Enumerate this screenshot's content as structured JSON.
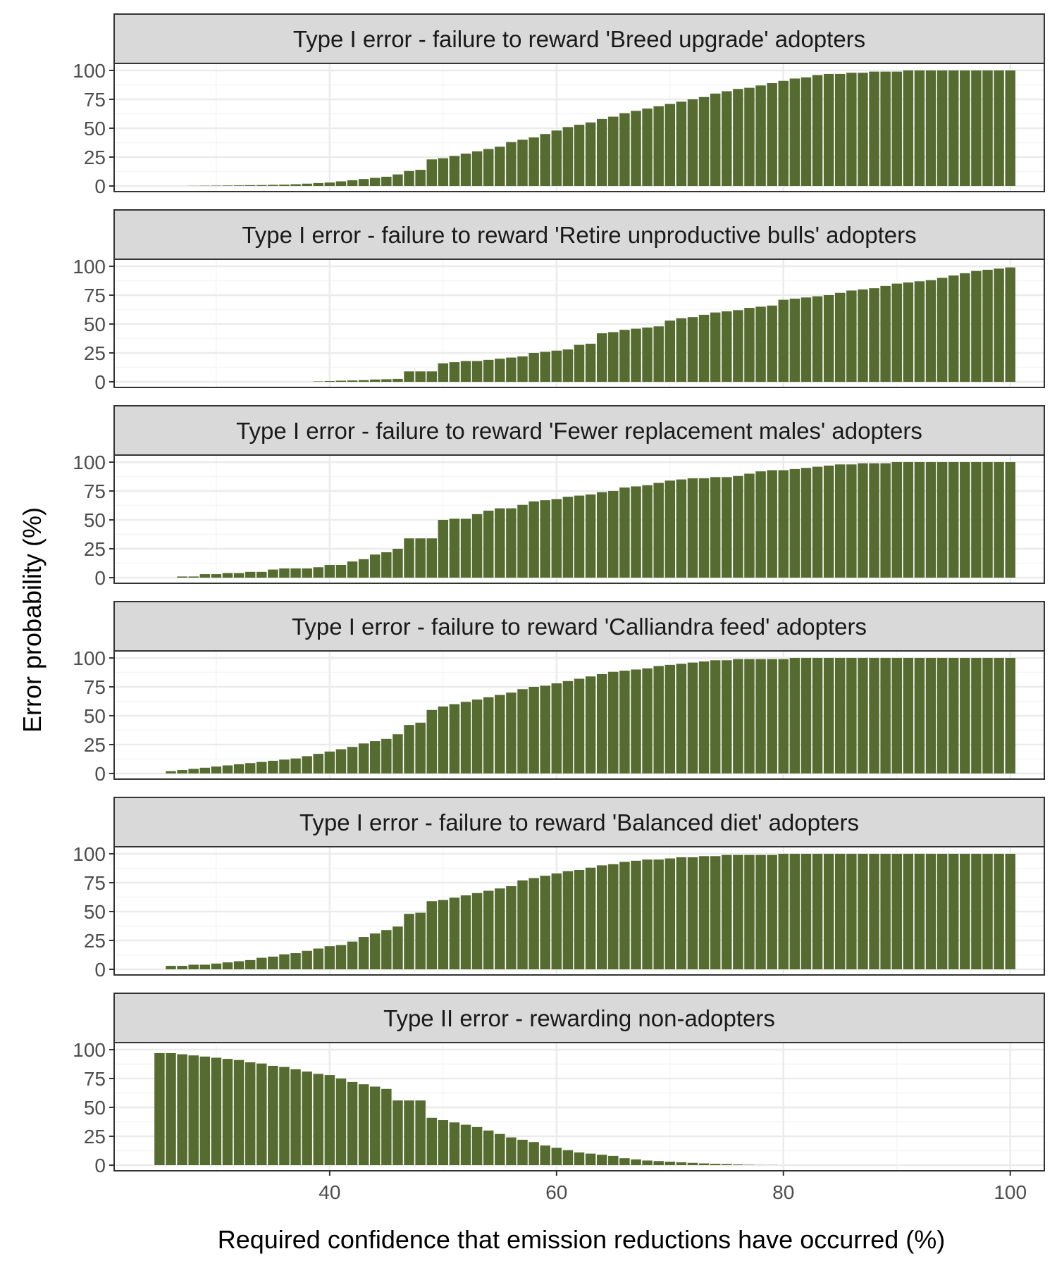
{
  "figure": {
    "ylabel": "Error probability (%)",
    "xlabel": "Required confidence that emission reductions have occurred (%)"
  },
  "colors": {
    "bar": "#556b2f",
    "strip": "#d9d9d9",
    "grid_major": "#ebebeb",
    "grid_minor": "#f5f5f5",
    "frame": "#333333"
  },
  "chart_data": [
    {
      "type": "bar",
      "title": "Type I error - failure to reward 'Breed upgrade' adopters",
      "x": [
        25,
        26,
        27,
        28,
        29,
        30,
        31,
        32,
        33,
        34,
        35,
        36,
        37,
        38,
        39,
        40,
        41,
        42,
        43,
        44,
        45,
        46,
        47,
        48,
        49,
        50,
        51,
        52,
        53,
        54,
        55,
        56,
        57,
        58,
        59,
        60,
        61,
        62,
        63,
        64,
        65,
        66,
        67,
        68,
        69,
        70,
        71,
        72,
        73,
        74,
        75,
        76,
        77,
        78,
        79,
        80,
        81,
        82,
        83,
        84,
        85,
        86,
        87,
        88,
        89,
        90,
        91,
        92,
        93,
        94,
        95,
        96,
        97,
        98,
        99,
        100
      ],
      "values": [
        0,
        0,
        0,
        0.1,
        0.2,
        0.3,
        0.4,
        0.5,
        0.7,
        0.8,
        1,
        1.2,
        1.5,
        2,
        2.5,
        3,
        4,
        5,
        6,
        7,
        8,
        10,
        13,
        14,
        23,
        24,
        26,
        28,
        30,
        32,
        34,
        38,
        40,
        42,
        45,
        48,
        51,
        53,
        55,
        58,
        60,
        63,
        65,
        67,
        69,
        71,
        73,
        75,
        77,
        80,
        82,
        84,
        85,
        87,
        89,
        91,
        93,
        94,
        96,
        97,
        97,
        98,
        98,
        99,
        99,
        99,
        100,
        100,
        100,
        100,
        100,
        100,
        100,
        100,
        100,
        100
      ],
      "xlim": [
        21,
        103
      ],
      "ylim": [
        0,
        100
      ],
      "yticks": [
        0,
        25,
        50,
        75,
        100
      ],
      "xticks": [
        40,
        60,
        80,
        100
      ]
    },
    {
      "type": "bar",
      "title": "Type I error - failure to reward 'Retire unproductive bulls' adopters",
      "x": [
        25,
        26,
        27,
        28,
        29,
        30,
        31,
        32,
        33,
        34,
        35,
        36,
        37,
        38,
        39,
        40,
        41,
        42,
        43,
        44,
        45,
        46,
        47,
        48,
        49,
        50,
        51,
        52,
        53,
        54,
        55,
        56,
        57,
        58,
        59,
        60,
        61,
        62,
        63,
        64,
        65,
        66,
        67,
        68,
        69,
        70,
        71,
        72,
        73,
        74,
        75,
        76,
        77,
        78,
        79,
        80,
        81,
        82,
        83,
        84,
        85,
        86,
        87,
        88,
        89,
        90,
        91,
        92,
        93,
        94,
        95,
        96,
        97,
        98,
        99,
        100
      ],
      "values": [
        0,
        0,
        0,
        0,
        0,
        0,
        0,
        0,
        0,
        0,
        0,
        0,
        0,
        0,
        0.3,
        0.6,
        1,
        1.2,
        1.5,
        2,
        2.2,
        2.5,
        9,
        9,
        9,
        16,
        17,
        18,
        18,
        19,
        20,
        21,
        22,
        25,
        26,
        27,
        28,
        32,
        33,
        42,
        43,
        45,
        46,
        47,
        48,
        53,
        55,
        56,
        58,
        60,
        61,
        62,
        64,
        65,
        66,
        71,
        72,
        73,
        74,
        75,
        77,
        79,
        80,
        81,
        83,
        85,
        86,
        87,
        88,
        90,
        92,
        94,
        96,
        97,
        98,
        99
      ],
      "xlim": [
        21,
        103
      ],
      "ylim": [
        0,
        100
      ],
      "yticks": [
        0,
        25,
        50,
        75,
        100
      ],
      "xticks": [
        40,
        60,
        80,
        100
      ]
    },
    {
      "type": "bar",
      "title": "Type I error - failure to reward 'Fewer replacement males' adopters",
      "x": [
        25,
        26,
        27,
        28,
        29,
        30,
        31,
        32,
        33,
        34,
        35,
        36,
        37,
        38,
        39,
        40,
        41,
        42,
        43,
        44,
        45,
        46,
        47,
        48,
        49,
        50,
        51,
        52,
        53,
        54,
        55,
        56,
        57,
        58,
        59,
        60,
        61,
        62,
        63,
        64,
        65,
        66,
        67,
        68,
        69,
        70,
        71,
        72,
        73,
        74,
        75,
        76,
        77,
        78,
        79,
        80,
        81,
        82,
        83,
        84,
        85,
        86,
        87,
        88,
        89,
        90,
        91,
        92,
        93,
        94,
        95,
        96,
        97,
        98,
        99,
        100
      ],
      "values": [
        0,
        0,
        1,
        1,
        3,
        3,
        4,
        4,
        5,
        5,
        7,
        8,
        8,
        8,
        9,
        11,
        11,
        14,
        16,
        20,
        22,
        25,
        34,
        34,
        34,
        50,
        51,
        51,
        55,
        58,
        60,
        60,
        63,
        66,
        67,
        68,
        70,
        71,
        72,
        74,
        75,
        78,
        79,
        80,
        82,
        84,
        85,
        86,
        86,
        87,
        87,
        88,
        90,
        92,
        93,
        93,
        94,
        95,
        96,
        97,
        98,
        98,
        99,
        99,
        99,
        100,
        100,
        100,
        100,
        100,
        100,
        100,
        100,
        100,
        100,
        100
      ],
      "xlim": [
        21,
        103
      ],
      "ylim": [
        0,
        100
      ],
      "yticks": [
        0,
        25,
        50,
        75,
        100
      ],
      "xticks": [
        40,
        60,
        80,
        100
      ]
    },
    {
      "type": "bar",
      "title": "Type I error - failure to reward 'Calliandra feed' adopters",
      "x": [
        25,
        26,
        27,
        28,
        29,
        30,
        31,
        32,
        33,
        34,
        35,
        36,
        37,
        38,
        39,
        40,
        41,
        42,
        43,
        44,
        45,
        46,
        47,
        48,
        49,
        50,
        51,
        52,
        53,
        54,
        55,
        56,
        57,
        58,
        59,
        60,
        61,
        62,
        63,
        64,
        65,
        66,
        67,
        68,
        69,
        70,
        71,
        72,
        73,
        74,
        75,
        76,
        77,
        78,
        79,
        80,
        81,
        82,
        83,
        84,
        85,
        86,
        87,
        88,
        89,
        90,
        91,
        92,
        93,
        94,
        95,
        96,
        97,
        98,
        99,
        100
      ],
      "values": [
        0,
        2,
        3,
        4,
        5,
        6,
        7,
        8,
        9,
        10,
        11,
        12,
        13,
        15,
        17,
        19,
        21,
        23,
        26,
        28,
        30,
        34,
        42,
        44,
        55,
        58,
        60,
        62,
        64,
        66,
        68,
        70,
        73,
        75,
        76,
        78,
        80,
        82,
        84,
        86,
        88,
        89,
        90,
        91,
        93,
        94,
        95,
        96,
        97,
        98,
        98,
        99,
        99,
        99,
        99,
        99,
        100,
        100,
        100,
        100,
        100,
        100,
        100,
        100,
        100,
        100,
        100,
        100,
        100,
        100,
        100,
        100,
        100,
        100,
        100,
        100
      ],
      "xlim": [
        21,
        103
      ],
      "ylim": [
        0,
        100
      ],
      "yticks": [
        0,
        25,
        50,
        75,
        100
      ],
      "xticks": [
        40,
        60,
        80,
        100
      ]
    },
    {
      "type": "bar",
      "title": "Type I error - failure to reward 'Balanced diet' adopters",
      "x": [
        25,
        26,
        27,
        28,
        29,
        30,
        31,
        32,
        33,
        34,
        35,
        36,
        37,
        38,
        39,
        40,
        41,
        42,
        43,
        44,
        45,
        46,
        47,
        48,
        49,
        50,
        51,
        52,
        53,
        54,
        55,
        56,
        57,
        58,
        59,
        60,
        61,
        62,
        63,
        64,
        65,
        66,
        67,
        68,
        69,
        70,
        71,
        72,
        73,
        74,
        75,
        76,
        77,
        78,
        79,
        80,
        81,
        82,
        83,
        84,
        85,
        86,
        87,
        88,
        89,
        90,
        91,
        92,
        93,
        94,
        95,
        96,
        97,
        98,
        99,
        100
      ],
      "values": [
        0,
        3,
        3,
        4,
        4,
        5,
        6,
        7,
        8,
        10,
        11,
        13,
        14,
        16,
        18,
        20,
        21,
        24,
        28,
        31,
        34,
        37,
        48,
        49,
        59,
        60,
        62,
        64,
        66,
        68,
        70,
        72,
        77,
        79,
        81,
        83,
        85,
        86,
        88,
        90,
        91,
        93,
        94,
        95,
        95,
        96,
        97,
        97,
        98,
        98,
        99,
        99,
        99,
        99,
        99,
        100,
        100,
        100,
        100,
        100,
        100,
        100,
        100,
        100,
        100,
        100,
        100,
        100,
        100,
        100,
        100,
        100,
        100,
        100,
        100,
        100
      ],
      "xlim": [
        21,
        103
      ],
      "ylim": [
        0,
        100
      ],
      "yticks": [
        0,
        25,
        50,
        75,
        100
      ],
      "xticks": [
        40,
        60,
        80,
        100
      ]
    },
    {
      "type": "bar",
      "title": "Type II error - rewarding non-adopters",
      "x": [
        25,
        26,
        27,
        28,
        29,
        30,
        31,
        32,
        33,
        34,
        35,
        36,
        37,
        38,
        39,
        40,
        41,
        42,
        43,
        44,
        45,
        46,
        47,
        48,
        49,
        50,
        51,
        52,
        53,
        54,
        55,
        56,
        57,
        58,
        59,
        60,
        61,
        62,
        63,
        64,
        65,
        66,
        67,
        68,
        69,
        70,
        71,
        72,
        73,
        74,
        75,
        76,
        77,
        78,
        79,
        80,
        81,
        82,
        83,
        84,
        85,
        86,
        87,
        88,
        89,
        90,
        91,
        92,
        93,
        94,
        95,
        96,
        97,
        98,
        99,
        100
      ],
      "values": [
        97,
        97,
        96,
        95,
        94,
        93,
        92,
        91,
        89,
        88,
        86,
        85,
        83,
        81,
        79,
        78,
        75,
        72,
        70,
        68,
        66,
        56,
        56,
        56,
        41,
        39,
        37,
        35,
        33,
        30,
        27,
        24,
        22,
        20,
        17,
        15,
        13,
        11,
        10,
        9,
        8,
        6,
        5,
        4,
        3.5,
        3,
        2.5,
        2,
        1.5,
        1.2,
        1,
        0.6,
        0.3,
        0.1,
        0.1,
        0,
        0,
        0,
        0,
        0,
        0,
        0,
        0,
        0,
        0,
        0,
        0,
        0,
        0,
        0,
        0,
        0,
        0,
        0,
        0,
        0
      ],
      "xlim": [
        21,
        103
      ],
      "ylim": [
        0,
        100
      ],
      "yticks": [
        0,
        25,
        50,
        75,
        100
      ],
      "xticks": [
        40,
        60,
        80,
        100
      ]
    }
  ]
}
